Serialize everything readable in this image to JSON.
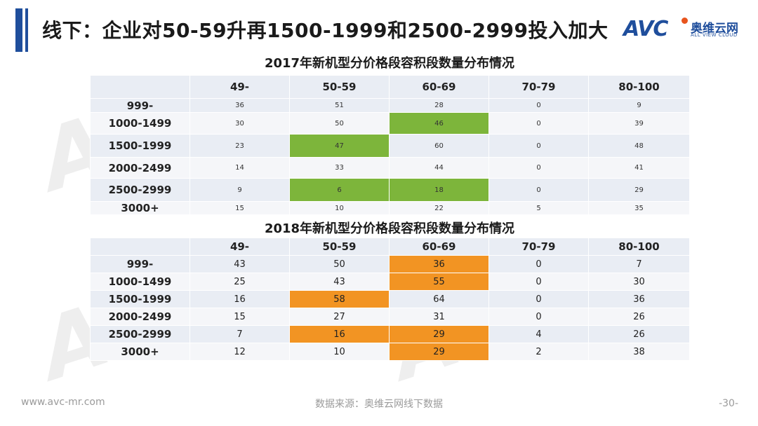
{
  "page": {
    "title": "线下：企业对50-59升再1500-1999和2500-2999投入加大",
    "logo_mark": "AVC",
    "logo_cn": "奥维云网",
    "logo_en": "ALL VIEW CLOUD",
    "page_number": "-30-"
  },
  "footer": {
    "website": "www.avc-mr.com",
    "source": "数据来源：奥维云网线下数据"
  },
  "colors": {
    "brand_blue": "#1f4e9c",
    "highlight_2017": "#7db53b",
    "highlight_2018": "#f29423"
  },
  "table_2017": {
    "title": "2017年新机型分价格段容积段数量分布情况",
    "columns": [
      "",
      "49-",
      "50-59",
      "60-69",
      "70-79",
      "80-100"
    ],
    "rows": [
      {
        "label": "999-",
        "values": [
          "36",
          "51",
          "28",
          "0",
          "9"
        ],
        "highlight": []
      },
      {
        "label": "1000-1499",
        "values": [
          "30",
          "50",
          "46",
          "0",
          "39"
        ],
        "highlight": [
          2
        ]
      },
      {
        "label": "1500-1999",
        "values": [
          "23",
          "47",
          "60",
          "0",
          "48"
        ],
        "highlight": [
          1
        ]
      },
      {
        "label": "2000-2499",
        "values": [
          "14",
          "33",
          "44",
          "0",
          "41"
        ],
        "highlight": []
      },
      {
        "label": "2500-2999",
        "values": [
          "9",
          "6",
          "18",
          "0",
          "29"
        ],
        "highlight": [
          1,
          2
        ]
      },
      {
        "label": "3000+",
        "values": [
          "15",
          "10",
          "22",
          "5",
          "35"
        ],
        "highlight": []
      }
    ]
  },
  "table_2018": {
    "title": "2018年新机型分价格段容积段数量分布情况",
    "columns": [
      "",
      "49-",
      "50-59",
      "60-69",
      "70-79",
      "80-100"
    ],
    "rows": [
      {
        "label": "999-",
        "values": [
          "43",
          "50",
          "36",
          "0",
          "7"
        ],
        "highlight": [
          2
        ]
      },
      {
        "label": "1000-1499",
        "values": [
          "25",
          "43",
          "55",
          "0",
          "30"
        ],
        "highlight": [
          2
        ]
      },
      {
        "label": "1500-1999",
        "values": [
          "16",
          "58",
          "64",
          "0",
          "36"
        ],
        "highlight": [
          1
        ]
      },
      {
        "label": "2000-2499",
        "values": [
          "15",
          "27",
          "31",
          "0",
          "26"
        ],
        "highlight": []
      },
      {
        "label": "2500-2999",
        "values": [
          "7",
          "16",
          "29",
          "4",
          "26"
        ],
        "highlight": [
          1,
          2
        ]
      },
      {
        "label": "3000+",
        "values": [
          "12",
          "10",
          "29",
          "2",
          "38"
        ],
        "highlight": [
          2
        ]
      }
    ]
  }
}
